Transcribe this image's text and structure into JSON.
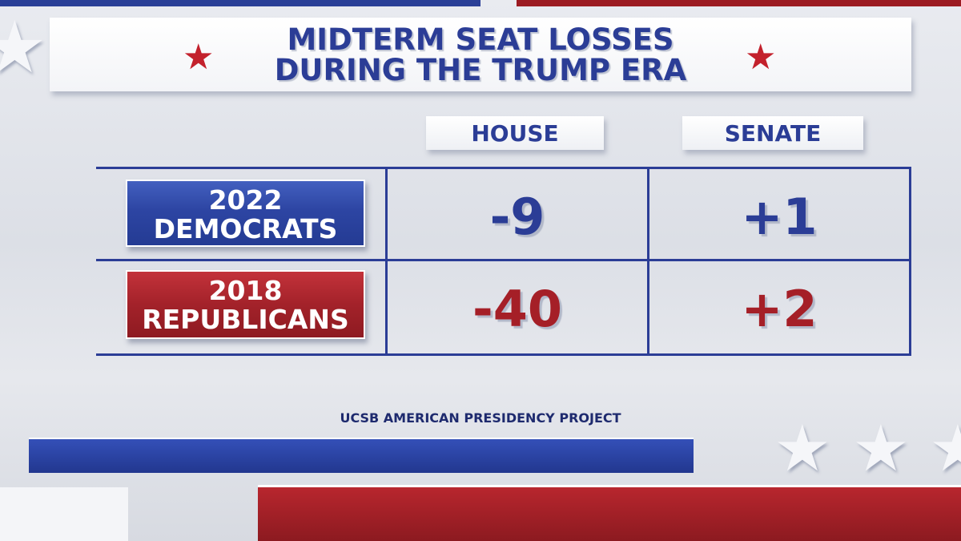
{
  "title": {
    "line1": "MIDTERM SEAT LOSSES",
    "line2": "DURING THE TRUMP ERA"
  },
  "source": "UCSB AMERICAN PRESIDENCY PROJECT",
  "colors": {
    "blue": "#2b3d96",
    "red": "#a51f27",
    "background": "#e3e5ea"
  },
  "icons": [
    "star-icon"
  ],
  "chart_data": {
    "type": "table",
    "columns": [
      "HOUSE",
      "SENATE"
    ],
    "rows": [
      {
        "year": "2022",
        "party": "DEMOCRATS",
        "house": "-9",
        "senate": "+1"
      },
      {
        "year": "2018",
        "party": "REPUBLICANS",
        "house": "-40",
        "senate": "+2"
      }
    ]
  }
}
